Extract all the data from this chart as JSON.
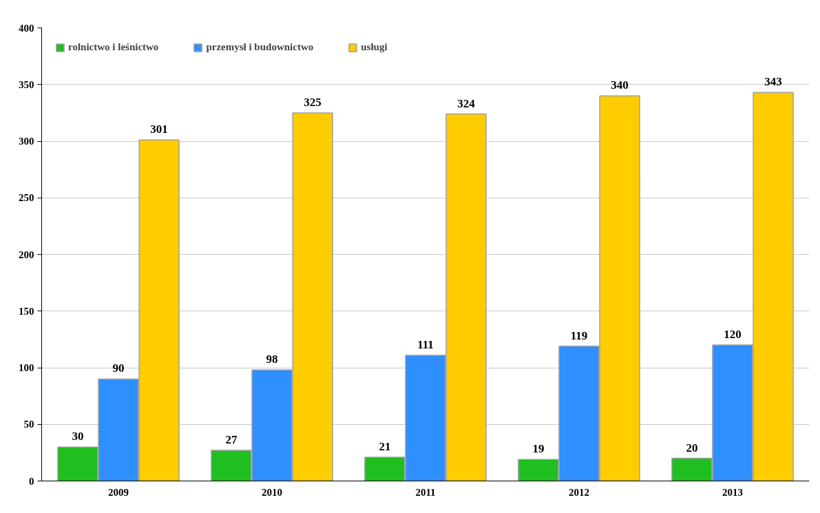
{
  "chart_data": {
    "type": "bar",
    "categories": [
      "2009",
      "2010",
      "2011",
      "2012",
      "2013"
    ],
    "series": [
      {
        "name": "rolnictwo i leśnictwo",
        "color": "#1fbf1f",
        "values": [
          30,
          27,
          21,
          19,
          20
        ]
      },
      {
        "name": "przemysł i budownictwo",
        "color": "#2f8fff",
        "values": [
          90,
          98,
          111,
          119,
          120
        ]
      },
      {
        "name": "usługi",
        "color": "#ffcc00",
        "values": [
          301,
          325,
          324,
          340,
          343
        ]
      }
    ],
    "ylim": [
      0,
      400
    ],
    "yticks": [
      0,
      50,
      100,
      150,
      200,
      250,
      300,
      350,
      400
    ],
    "grid": "y",
    "legend": "top left",
    "data_labels": true
  }
}
